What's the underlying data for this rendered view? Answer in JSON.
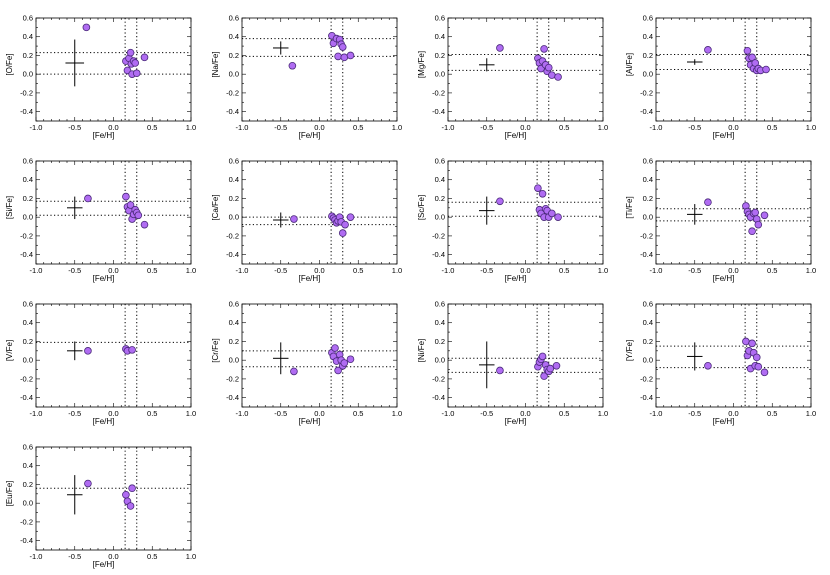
{
  "chart_data": [
    {
      "type": "scatter",
      "ylabel": "[O/Fe]",
      "xlabel": "[Fe/H]",
      "xlim": [
        -1.0,
        1.0
      ],
      "ylim": [
        -0.5,
        0.6
      ],
      "x_ticks": [
        "-1.0",
        "-0.5",
        "0.0",
        "0.5",
        "1.0"
      ],
      "y_ticks": [
        "-0.4",
        "-0.2",
        "0.0",
        "0.2",
        "0.4",
        "0.6"
      ],
      "points": [
        [
          -0.35,
          0.5
        ],
        [
          0.16,
          0.14
        ],
        [
          0.18,
          0.04
        ],
        [
          0.2,
          0.17
        ],
        [
          0.22,
          0.23
        ],
        [
          0.23,
          0.11
        ],
        [
          0.24,
          0.0
        ],
        [
          0.26,
          0.14
        ],
        [
          0.28,
          0.12
        ],
        [
          0.3,
          0.01
        ],
        [
          0.4,
          0.18
        ]
      ],
      "hline_y": [
        0.23,
        0.0
      ],
      "vline_x": [
        0.15,
        0.3
      ],
      "error_bar": {
        "x": -0.5,
        "y": 0.12,
        "xerr": 0.12,
        "yerr": 0.25
      }
    },
    {
      "type": "scatter",
      "ylabel": "[Na/Fe]",
      "xlabel": "[Fe/H]",
      "xlim": [
        -1.0,
        1.0
      ],
      "ylim": [
        -0.5,
        0.6
      ],
      "x_ticks": [
        "-1.0",
        "-0.5",
        "0.0",
        "0.5",
        "1.0"
      ],
      "y_ticks": [
        "-0.4",
        "-0.2",
        "0.0",
        "0.2",
        "0.4",
        "0.6"
      ],
      "points": [
        [
          -0.35,
          0.09
        ],
        [
          0.16,
          0.41
        ],
        [
          0.18,
          0.33
        ],
        [
          0.22,
          0.38
        ],
        [
          0.24,
          0.19
        ],
        [
          0.26,
          0.37
        ],
        [
          0.28,
          0.32
        ],
        [
          0.3,
          0.29
        ],
        [
          0.32,
          0.18
        ],
        [
          0.4,
          0.2
        ]
      ],
      "hline_y": [
        0.38,
        0.19
      ],
      "vline_x": [
        0.15,
        0.3
      ],
      "error_bar": {
        "x": -0.5,
        "y": 0.28,
        "xerr": 0.1,
        "yerr": 0.07
      }
    },
    {
      "type": "scatter",
      "ylabel": "[Mg/Fe]",
      "xlabel": "[Fe/H]",
      "xlim": [
        -1.0,
        1.0
      ],
      "ylim": [
        -0.5,
        0.6
      ],
      "x_ticks": [
        "-1.0",
        "-0.5",
        "0.0",
        "0.5",
        "1.0"
      ],
      "y_ticks": [
        "-0.4",
        "-0.2",
        "0.0",
        "0.2",
        "0.4",
        "0.6"
      ],
      "points": [
        [
          -0.33,
          0.28
        ],
        [
          0.16,
          0.17
        ],
        [
          0.18,
          0.12
        ],
        [
          0.2,
          0.06
        ],
        [
          0.22,
          0.14
        ],
        [
          0.24,
          0.27
        ],
        [
          0.26,
          0.1
        ],
        [
          0.28,
          0.03
        ],
        [
          0.3,
          0.07
        ],
        [
          0.34,
          -0.01
        ],
        [
          0.42,
          -0.03
        ]
      ],
      "hline_y": [
        0.21,
        0.04
      ],
      "vline_x": [
        0.15,
        0.3
      ],
      "error_bar": {
        "x": -0.5,
        "y": 0.1,
        "xerr": 0.1,
        "yerr": 0.07
      }
    },
    {
      "type": "scatter",
      "ylabel": "[Al/Fe]",
      "xlabel": "[Fe/H]",
      "xlim": [
        -1.0,
        1.0
      ],
      "ylim": [
        -0.5,
        0.6
      ],
      "x_ticks": [
        "-1.0",
        "-0.5",
        "0.0",
        "0.5",
        "1.0"
      ],
      "y_ticks": [
        "-0.4",
        "-0.2",
        "0.0",
        "0.2",
        "0.4",
        "0.6"
      ],
      "points": [
        [
          -0.33,
          0.26
        ],
        [
          0.18,
          0.25
        ],
        [
          0.2,
          0.17
        ],
        [
          0.22,
          0.1
        ],
        [
          0.24,
          0.18
        ],
        [
          0.26,
          0.06
        ],
        [
          0.28,
          0.12
        ],
        [
          0.3,
          0.04
        ],
        [
          0.32,
          0.06
        ],
        [
          0.35,
          0.04
        ],
        [
          0.42,
          0.05
        ]
      ],
      "hline_y": [
        0.21,
        0.05
      ],
      "vline_x": [
        0.15,
        0.3
      ],
      "error_bar": {
        "x": -0.5,
        "y": 0.13,
        "xerr": 0.1,
        "yerr": 0.03
      }
    },
    {
      "type": "scatter",
      "ylabel": "[Si/Fe]",
      "xlabel": "[Fe/H]",
      "xlim": [
        -1.0,
        1.0
      ],
      "ylim": [
        -0.5,
        0.6
      ],
      "x_ticks": [
        "-1.0",
        "-0.5",
        "0.0",
        "0.5",
        "1.0"
      ],
      "y_ticks": [
        "-0.4",
        "-0.2",
        "0.0",
        "0.2",
        "0.4",
        "0.6"
      ],
      "points": [
        [
          -0.33,
          0.2
        ],
        [
          0.16,
          0.22
        ],
        [
          0.18,
          0.11
        ],
        [
          0.2,
          0.07
        ],
        [
          0.22,
          0.13
        ],
        [
          0.24,
          -0.02
        ],
        [
          0.26,
          0.03
        ],
        [
          0.28,
          0.08
        ],
        [
          0.3,
          0.05
        ],
        [
          0.32,
          0.02
        ],
        [
          0.4,
          -0.08
        ]
      ],
      "hline_y": [
        0.17,
        0.02
      ],
      "vline_x": [
        0.15,
        0.3
      ],
      "error_bar": {
        "x": -0.5,
        "y": 0.1,
        "xerr": 0.1,
        "yerr": 0.12
      }
    },
    {
      "type": "scatter",
      "ylabel": "[Ca/Fe]",
      "xlabel": "[Fe/H]",
      "xlim": [
        -1.0,
        1.0
      ],
      "ylim": [
        -0.5,
        0.6
      ],
      "x_ticks": [
        "-1.0",
        "-0.5",
        "0.0",
        "0.5",
        "1.0"
      ],
      "y_ticks": [
        "-0.4",
        "-0.2",
        "0.0",
        "0.2",
        "0.4",
        "0.6"
      ],
      "points": [
        [
          -0.33,
          -0.02
        ],
        [
          0.16,
          0.01
        ],
        [
          0.18,
          -0.01
        ],
        [
          0.2,
          -0.03
        ],
        [
          0.22,
          -0.06
        ],
        [
          0.24,
          -0.04
        ],
        [
          0.26,
          0.0
        ],
        [
          0.28,
          -0.05
        ],
        [
          0.3,
          -0.17
        ],
        [
          0.33,
          -0.08
        ],
        [
          0.4,
          0.0
        ]
      ],
      "hline_y": [
        0.0,
        -0.08
      ],
      "vline_x": [
        0.15,
        0.3
      ],
      "error_bar": {
        "x": -0.5,
        "y": -0.03,
        "xerr": 0.1,
        "yerr": 0.08
      }
    },
    {
      "type": "scatter",
      "ylabel": "[Sc/Fe]",
      "xlabel": "[Fe/H]",
      "xlim": [
        -1.0,
        1.0
      ],
      "ylim": [
        -0.5,
        0.6
      ],
      "x_ticks": [
        "-1.0",
        "-0.5",
        "0.0",
        "0.5",
        "1.0"
      ],
      "y_ticks": [
        "-0.4",
        "-0.2",
        "0.0",
        "0.2",
        "0.4",
        "0.6"
      ],
      "points": [
        [
          -0.33,
          0.17
        ],
        [
          0.16,
          0.31
        ],
        [
          0.18,
          0.08
        ],
        [
          0.2,
          0.04
        ],
        [
          0.22,
          0.25
        ],
        [
          0.24,
          0.0
        ],
        [
          0.26,
          0.09
        ],
        [
          0.28,
          0.07
        ],
        [
          0.3,
          0.0
        ],
        [
          0.34,
          0.04
        ],
        [
          0.42,
          0.0
        ]
      ],
      "hline_y": [
        0.16,
        0.01
      ],
      "vline_x": [
        0.15,
        0.3
      ],
      "error_bar": {
        "x": -0.5,
        "y": 0.07,
        "xerr": 0.1,
        "yerr": 0.15
      }
    },
    {
      "type": "scatter",
      "ylabel": "[Ti/Fe]",
      "xlabel": "[Fe/H]",
      "xlim": [
        -1.0,
        1.0
      ],
      "ylim": [
        -0.5,
        0.6
      ],
      "x_ticks": [
        "-1.0",
        "-0.5",
        "0.0",
        "0.5",
        "1.0"
      ],
      "y_ticks": [
        "-0.4",
        "-0.2",
        "0.0",
        "0.2",
        "0.4",
        "0.6"
      ],
      "points": [
        [
          -0.33,
          0.16
        ],
        [
          0.16,
          0.12
        ],
        [
          0.18,
          0.06
        ],
        [
          0.2,
          0.03
        ],
        [
          0.22,
          0.0
        ],
        [
          0.24,
          -0.15
        ],
        [
          0.26,
          0.04
        ],
        [
          0.28,
          0.05
        ],
        [
          0.3,
          -0.02
        ],
        [
          0.32,
          -0.08
        ],
        [
          0.4,
          0.02
        ]
      ],
      "hline_y": [
        0.09,
        -0.04
      ],
      "vline_x": [
        0.15,
        0.3
      ],
      "error_bar": {
        "x": -0.5,
        "y": 0.03,
        "xerr": 0.1,
        "yerr": 0.11
      }
    },
    {
      "type": "scatter",
      "ylabel": "[V/Fe]",
      "xlabel": "[Fe/H]",
      "xlim": [
        -1.0,
        1.0
      ],
      "ylim": [
        -0.5,
        0.6
      ],
      "x_ticks": [
        "-1.0",
        "-0.5",
        "0.0",
        "0.5",
        "1.0"
      ],
      "y_ticks": [
        "-0.4",
        "-0.2",
        "0.0",
        "0.2",
        "0.4",
        "0.6"
      ],
      "points": [
        [
          -0.33,
          0.1
        ],
        [
          0.16,
          0.12
        ],
        [
          0.18,
          0.1
        ],
        [
          0.24,
          0.11
        ]
      ],
      "hline_y": [
        0.19
      ],
      "vline_x": [
        0.15,
        0.3
      ],
      "error_bar": {
        "x": -0.5,
        "y": 0.1,
        "xerr": 0.1,
        "yerr": 0.1
      }
    },
    {
      "type": "scatter",
      "ylabel": "[Cr/Fe]",
      "xlabel": "[Fe/H]",
      "xlim": [
        -1.0,
        1.0
      ],
      "ylim": [
        -0.5,
        0.6
      ],
      "x_ticks": [
        "-1.0",
        "-0.5",
        "0.0",
        "0.5",
        "1.0"
      ],
      "y_ticks": [
        "-0.4",
        "-0.2",
        "0.0",
        "0.2",
        "0.4",
        "0.6"
      ],
      "points": [
        [
          -0.33,
          -0.12
        ],
        [
          0.16,
          0.08
        ],
        [
          0.18,
          0.04
        ],
        [
          0.2,
          0.13
        ],
        [
          0.22,
          -0.01
        ],
        [
          0.24,
          -0.11
        ],
        [
          0.26,
          0.06
        ],
        [
          0.28,
          0.0
        ],
        [
          0.3,
          -0.06
        ],
        [
          0.32,
          -0.03
        ],
        [
          0.4,
          0.01
        ]
      ],
      "hline_y": [
        0.1,
        -0.07
      ],
      "vline_x": [
        0.15,
        0.3
      ],
      "error_bar": {
        "x": -0.5,
        "y": 0.02,
        "xerr": 0.1,
        "yerr": 0.17
      }
    },
    {
      "type": "scatter",
      "ylabel": "[Ni/Fe]",
      "xlabel": "[Fe/H]",
      "xlim": [
        -1.0,
        1.0
      ],
      "ylim": [
        -0.5,
        0.6
      ],
      "x_ticks": [
        "-1.0",
        "-0.5",
        "0.0",
        "0.5",
        "1.0"
      ],
      "y_ticks": [
        "-0.4",
        "-0.2",
        "0.0",
        "0.2",
        "0.4",
        "0.6"
      ],
      "points": [
        [
          -0.33,
          -0.11
        ],
        [
          0.16,
          -0.07
        ],
        [
          0.18,
          -0.02
        ],
        [
          0.2,
          0.01
        ],
        [
          0.22,
          0.04
        ],
        [
          0.24,
          -0.17
        ],
        [
          0.26,
          -0.05
        ],
        [
          0.28,
          -0.1
        ],
        [
          0.3,
          -0.12
        ],
        [
          0.32,
          -0.09
        ],
        [
          0.4,
          -0.06
        ]
      ],
      "hline_y": [
        0.02,
        -0.13
      ],
      "vline_x": [
        0.15,
        0.3
      ],
      "error_bar": {
        "x": -0.5,
        "y": -0.05,
        "xerr": 0.1,
        "yerr": 0.25
      }
    },
    {
      "type": "scatter",
      "ylabel": "[Y/Fe]",
      "xlabel": "[Fe/H]",
      "xlim": [
        -1.0,
        1.0
      ],
      "ylim": [
        -0.5,
        0.6
      ],
      "x_ticks": [
        "-1.0",
        "-0.5",
        "0.0",
        "0.5",
        "1.0"
      ],
      "y_ticks": [
        "-0.4",
        "-0.2",
        "0.0",
        "0.2",
        "0.4",
        "0.6"
      ],
      "points": [
        [
          -0.33,
          -0.06
        ],
        [
          0.16,
          0.2
        ],
        [
          0.18,
          0.05
        ],
        [
          0.2,
          0.1
        ],
        [
          0.22,
          -0.09
        ],
        [
          0.24,
          0.18
        ],
        [
          0.26,
          0.08
        ],
        [
          0.28,
          -0.06
        ],
        [
          0.3,
          0.03
        ],
        [
          0.32,
          -0.07
        ],
        [
          0.4,
          -0.13
        ]
      ],
      "hline_y": [
        0.15,
        -0.08
      ],
      "vline_x": [
        0.15,
        0.3
      ],
      "error_bar": {
        "x": -0.5,
        "y": 0.04,
        "xerr": 0.1,
        "yerr": 0.15
      }
    },
    {
      "type": "scatter",
      "ylabel": "[Eu/Fe]",
      "xlabel": "[Fe/H]",
      "xlim": [
        -1.0,
        1.0
      ],
      "ylim": [
        -0.5,
        0.6
      ],
      "x_ticks": [
        "-1.0",
        "-0.5",
        "0.0",
        "0.5",
        "1.0"
      ],
      "y_ticks": [
        "-0.4",
        "-0.2",
        "0.0",
        "0.2",
        "0.4",
        "0.6"
      ],
      "points": [
        [
          -0.33,
          0.21
        ],
        [
          0.16,
          0.09
        ],
        [
          0.18,
          0.02
        ],
        [
          0.22,
          -0.03
        ],
        [
          0.24,
          0.16
        ]
      ],
      "hline_y": [
        0.16
      ],
      "vline_x": [
        0.15,
        0.3
      ],
      "error_bar": {
        "x": -0.5,
        "y": 0.09,
        "xerr": 0.1,
        "yerr": 0.21
      }
    }
  ],
  "colors": {
    "marker_fill": "#b06cf2",
    "marker_edge": "#4a2a7a",
    "axis": "#000000",
    "ref_line": "#000000"
  }
}
